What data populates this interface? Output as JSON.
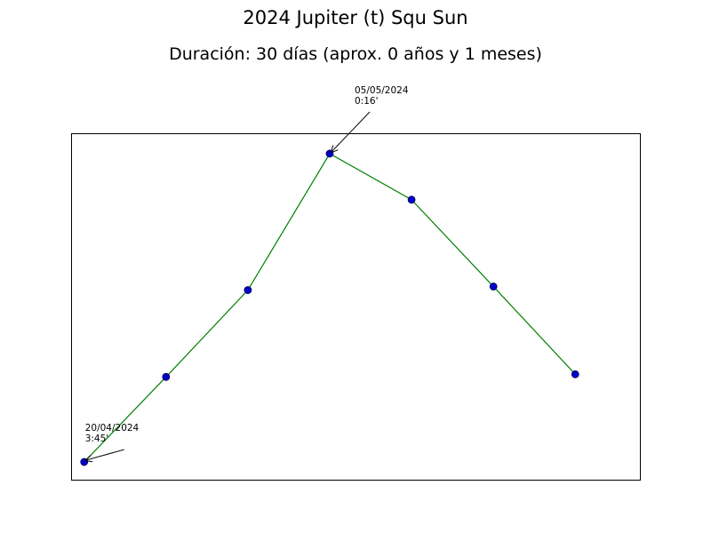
{
  "chart_data": {
    "type": "line",
    "title": "2024 Jupiter (t) Squ Sun",
    "subtitle": "Duración: 30 días (aprox. 0 años y 1 meses)",
    "xlabel": "",
    "ylabel": "",
    "grid": false,
    "series_color": "#008000",
    "marker_color": "#0000cc",
    "x": [
      0,
      1,
      2,
      3,
      4,
      5,
      6
    ],
    "values": [
      3.75,
      2.79,
      1.81,
      0.27,
      0.79,
      1.77,
      2.76
    ],
    "xlim": [
      -0.16,
      6.79
    ],
    "ylim": [
      0.04,
      3.95
    ],
    "annotations": [
      {
        "point_index": 0,
        "date": "20/04/2024",
        "value_label": "3:45'"
      },
      {
        "point_index": 3,
        "date": "05/05/2024",
        "value_label": "0:16'"
      }
    ]
  }
}
